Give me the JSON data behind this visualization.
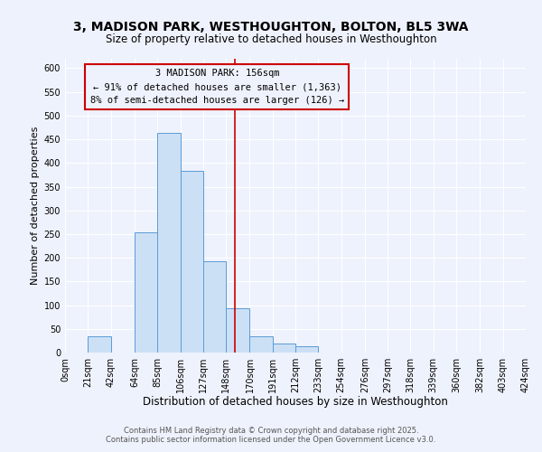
{
  "title": "3, MADISON PARK, WESTHOUGHTON, BOLTON, BL5 3WA",
  "subtitle": "Size of property relative to detached houses in Westhoughton",
  "xlabel": "Distribution of detached houses by size in Westhoughton",
  "ylabel": "Number of detached properties",
  "bar_edges": [
    0,
    21,
    42,
    64,
    85,
    106,
    127,
    148,
    170,
    191,
    212,
    233,
    254,
    276,
    297,
    318,
    339,
    360,
    382,
    403,
    424
  ],
  "bar_heights": [
    0,
    35,
    0,
    253,
    463,
    383,
    192,
    93,
    35,
    20,
    13,
    0,
    0,
    0,
    0,
    0,
    0,
    0,
    0,
    0
  ],
  "bar_face_color": "#cce0f5",
  "bar_edge_color": "#5b9bd5",
  "vline_x": 156,
  "vline_color": "#cc0000",
  "annotation_box_color": "#cc0000",
  "annotation_title": "3 MADISON PARK: 156sqm",
  "annotation_line1": "← 91% of detached houses are smaller (1,363)",
  "annotation_line2": "8% of semi-detached houses are larger (126) →",
  "ylim": [
    0,
    620
  ],
  "yticks": [
    0,
    50,
    100,
    150,
    200,
    250,
    300,
    350,
    400,
    450,
    500,
    550,
    600
  ],
  "background_color": "#eef2fc",
  "grid_color": "#ffffff",
  "footer_line1": "Contains HM Land Registry data © Crown copyright and database right 2025.",
  "footer_line2": "Contains public sector information licensed under the Open Government Licence v3.0.",
  "title_fontsize": 10,
  "subtitle_fontsize": 8.5,
  "xlabel_fontsize": 8.5,
  "ylabel_fontsize": 8,
  "tick_fontsize": 7,
  "annotation_fontsize": 7.5,
  "footer_fontsize": 6
}
